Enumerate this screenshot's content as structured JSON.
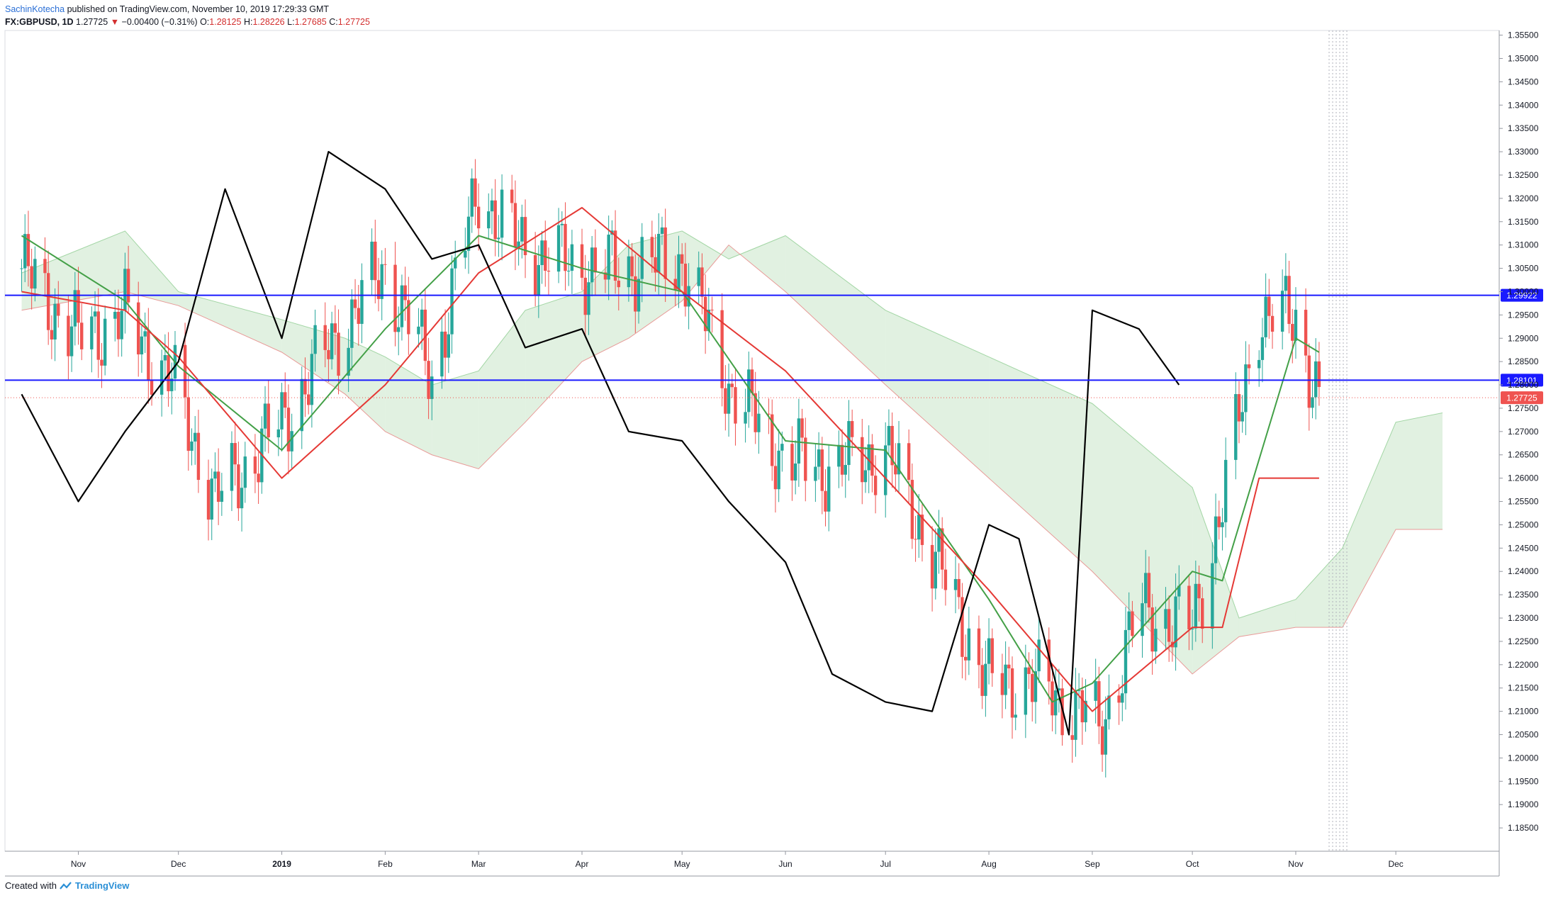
{
  "header": {
    "author": "SachinKotecha",
    "published": "published on TradingView.com, November 10, 2019 17:29:33 GMT",
    "symbol": "FX:GBPUSD, 1D",
    "last": "1.27725",
    "change": "−0.00400 (−0.31%)",
    "o_label": "O:",
    "o_val": "1.28125",
    "h_label": "H:",
    "h_val": "1.28226",
    "l_label": "L:",
    "l_val": "1.27685",
    "c_label": "C:",
    "c_val": "1.27725"
  },
  "footer": {
    "created": "Created with",
    "brand": "TradingView"
  },
  "colors": {
    "up": "#26a69a",
    "down": "#ef5350",
    "tenkan": "#43a047",
    "kijun": "#e53935",
    "lagging": "#000000",
    "level": "#1a1aff",
    "cloud_bull": "#c8e6c9",
    "cloud_bear": "#ffcdd2"
  },
  "chart_data": {
    "type": "candlestick",
    "title": "",
    "instrument": "FX:GBPUSD",
    "timeframe": "1D",
    "ylim": [
      1.18,
      1.356
    ],
    "y_ticks": [
      "1.35500",
      "1.35000",
      "1.34500",
      "1.34000",
      "1.33500",
      "1.33000",
      "1.32500",
      "1.32000",
      "1.31500",
      "1.31000",
      "1.30500",
      "1.30000",
      "1.29500",
      "1.29000",
      "1.28500",
      "1.28000",
      "1.27500",
      "1.27000",
      "1.26500",
      "1.26000",
      "1.25500",
      "1.25000",
      "1.24500",
      "1.24000",
      "1.23500",
      "1.23000",
      "1.22500",
      "1.22000",
      "1.21500",
      "1.21000",
      "1.20500",
      "1.20000",
      "1.19500",
      "1.19000",
      "1.18500"
    ],
    "x_ticks": [
      "Nov",
      "Dec",
      "2019",
      "Feb",
      "Mar",
      "Apr",
      "May",
      "Jun",
      "Jul",
      "Aug",
      "Sep",
      "Oct",
      "Nov",
      "Dec"
    ],
    "horizontal_levels": [
      {
        "value": 1.29922,
        "label": "1.29922"
      },
      {
        "value": 1.28101,
        "label": "1.28101"
      }
    ],
    "last_price": {
      "value": 1.27725,
      "label": "1.27725"
    },
    "series": [
      {
        "name": "",
        "type": "close",
        "x": [
          "2018-10-15",
          "2018-11-01",
          "2018-11-15",
          "2018-12-01",
          "2018-12-12",
          "2019-01-01",
          "2019-01-15",
          "2019-02-01",
          "2019-02-15",
          "2019-03-01",
          "2019-03-13",
          "2019-04-01",
          "2019-04-15",
          "2019-05-01",
          "2019-05-15",
          "2019-06-01",
          "2019-06-15",
          "2019-07-01",
          "2019-07-15",
          "2019-08-01",
          "2019-08-12",
          "2019-09-01",
          "2019-09-03",
          "2019-09-15",
          "2019-10-01",
          "2019-10-11",
          "2019-10-21",
          "2019-11-01",
          "2019-11-08"
        ],
        "values": [
          1.305,
          1.29,
          1.295,
          1.278,
          1.255,
          1.272,
          1.288,
          1.305,
          1.282,
          1.322,
          1.31,
          1.305,
          1.305,
          1.307,
          1.28,
          1.264,
          1.262,
          1.266,
          1.244,
          1.216,
          1.217,
          1.209,
          1.205,
          1.232,
          1.228,
          1.258,
          1.295,
          1.294,
          1.277
        ]
      },
      {
        "name": "",
        "type": "tenkan",
        "x": [
          "2018-10-15",
          "2018-11-15",
          "2018-12-01",
          "2019-01-01",
          "2019-02-01",
          "2019-03-01",
          "2019-04-01",
          "2019-05-01",
          "2019-06-01",
          "2019-07-01",
          "2019-08-01",
          "2019-08-20",
          "2019-09-01",
          "2019-10-01",
          "2019-10-10",
          "2019-10-21",
          "2019-11-01",
          "2019-11-08"
        ],
        "values": [
          1.312,
          1.298,
          1.284,
          1.266,
          1.292,
          1.312,
          1.305,
          1.3,
          1.268,
          1.266,
          1.234,
          1.212,
          1.216,
          1.24,
          1.238,
          1.264,
          1.29,
          1.287
        ]
      },
      {
        "name": "",
        "type": "kijun",
        "x": [
          "2018-10-15",
          "2018-11-15",
          "2018-12-01",
          "2019-01-01",
          "2019-02-01",
          "2019-03-01",
          "2019-04-01",
          "2019-05-01",
          "2019-06-01",
          "2019-07-01",
          "2019-08-01",
          "2019-09-01",
          "2019-10-01",
          "2019-10-10",
          "2019-10-21",
          "2019-11-08"
        ],
        "values": [
          1.3,
          1.296,
          1.286,
          1.26,
          1.28,
          1.304,
          1.318,
          1.3,
          1.283,
          1.26,
          1.236,
          1.21,
          1.228,
          1.228,
          1.26,
          1.26
        ]
      },
      {
        "name": "",
        "type": "lagging",
        "x": [
          "2018-10-15",
          "2018-11-01",
          "2018-11-15",
          "2018-12-01",
          "2018-12-15",
          "2019-01-01",
          "2019-01-15",
          "2019-02-01",
          "2019-02-15",
          "2019-03-01",
          "2019-03-15",
          "2019-04-01",
          "2019-04-15",
          "2019-05-01",
          "2019-05-15",
          "2019-06-01",
          "2019-06-15",
          "2019-07-01",
          "2019-07-15",
          "2019-08-01",
          "2019-08-10",
          "2019-08-25",
          "2019-09-01",
          "2019-09-15",
          "2019-09-27"
        ],
        "values": [
          1.278,
          1.255,
          1.27,
          1.285,
          1.322,
          1.29,
          1.33,
          1.322,
          1.307,
          1.31,
          1.288,
          1.292,
          1.27,
          1.268,
          1.255,
          1.242,
          1.218,
          1.212,
          1.21,
          1.25,
          1.247,
          1.205,
          1.296,
          1.292,
          1.28
        ]
      }
    ],
    "cloud": {
      "x": [
        "2018-10-15",
        "2018-11-15",
        "2018-12-01",
        "2019-01-01",
        "2019-01-20",
        "2019-02-01",
        "2019-02-15",
        "2019-03-01",
        "2019-03-15",
        "2019-04-01",
        "2019-04-15",
        "2019-05-01",
        "2019-05-15",
        "2019-06-01",
        "2019-07-01",
        "2019-08-01",
        "2019-09-01",
        "2019-10-01",
        "2019-10-15",
        "2019-11-01",
        "2019-11-15",
        "2019-12-01",
        "2019-12-15"
      ],
      "span_a": [
        1.304,
        1.313,
        1.3,
        1.294,
        1.29,
        1.286,
        1.28,
        1.283,
        1.296,
        1.3,
        1.31,
        1.313,
        1.307,
        1.312,
        1.296,
        1.286,
        1.276,
        1.258,
        1.23,
        1.234,
        1.245,
        1.272,
        1.274
      ],
      "span_b": [
        1.296,
        1.3,
        1.297,
        1.287,
        1.278,
        1.27,
        1.265,
        1.262,
        1.272,
        1.285,
        1.29,
        1.298,
        1.31,
        1.3,
        1.28,
        1.26,
        1.24,
        1.218,
        1.226,
        1.228,
        1.228,
        1.249,
        1.249
      ]
    }
  }
}
